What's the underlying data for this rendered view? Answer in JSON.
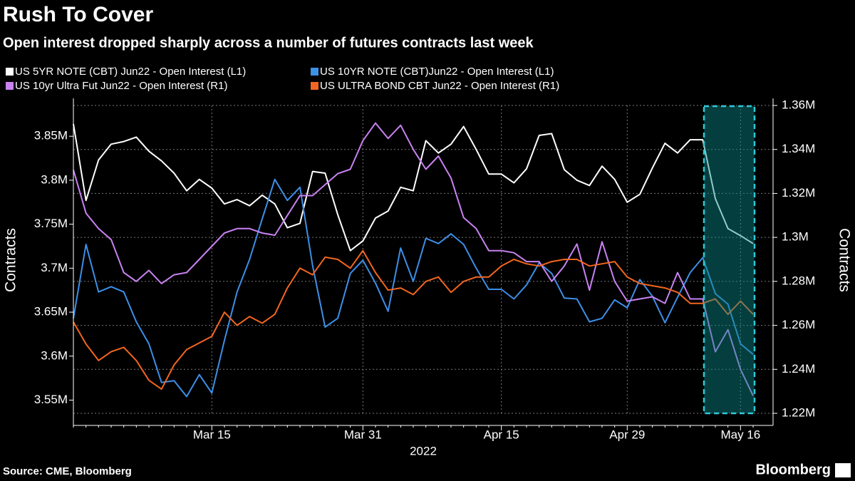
{
  "chart_data": {
    "type": "line",
    "title": "Rush To Cover",
    "subtitle": "Open interest dropped sharply across a number of futures contracts last week",
    "x_label": "2022",
    "y_label": "Contracts",
    "y2_label": "Contracts",
    "source": "Source: CME, Bloomberg",
    "brand": "Bloomberg",
    "grid": true,
    "categories": [
      null,
      null,
      null,
      null,
      null,
      null,
      null,
      null,
      null,
      null,
      null,
      "Mar 15",
      null,
      null,
      null,
      null,
      null,
      null,
      null,
      null,
      null,
      null,
      null,
      "Mar 31",
      null,
      null,
      null,
      null,
      null,
      null,
      null,
      null,
      null,
      null,
      "Apr 15",
      null,
      null,
      null,
      null,
      null,
      null,
      null,
      null,
      null,
      "Apr 29",
      null,
      null,
      null,
      null,
      null,
      null,
      null,
      null,
      "May 16",
      null
    ],
    "ylim": [
      3535000,
      3885000
    ],
    "yticks": [
      {
        "value": 3550000,
        "label": "3.55M"
      },
      {
        "value": 3600000,
        "label": "3.6M"
      },
      {
        "value": 3650000,
        "label": "3.65M"
      },
      {
        "value": 3700000,
        "label": "3.7M"
      },
      {
        "value": 3750000,
        "label": "3.75M"
      },
      {
        "value": 3800000,
        "label": "3.8M"
      },
      {
        "value": 3850000,
        "label": "3.85M"
      }
    ],
    "y2lim": [
      1220000,
      1360000
    ],
    "y2ticks": [
      {
        "value": 1220000,
        "label": "1.22M"
      },
      {
        "value": 1240000,
        "label": "1.24M"
      },
      {
        "value": 1260000,
        "label": "1.26M"
      },
      {
        "value": 1280000,
        "label": "1.28M"
      },
      {
        "value": 1300000,
        "label": "1.3M"
      },
      {
        "value": 1320000,
        "label": "1.32M"
      },
      {
        "value": 1340000,
        "label": "1.34M"
      },
      {
        "value": 1360000,
        "label": "1.36M"
      }
    ],
    "series": [
      {
        "name": "US 5YR NOTE (CBT) Jun22 - Open Interest (L1)",
        "color": "#ffffff",
        "axis": "y",
        "values": [
          3864000,
          3777000,
          3823000,
          3841000,
          3844000,
          3849000,
          3833000,
          3822000,
          3808000,
          3788000,
          3801000,
          3791000,
          3773000,
          3778000,
          3771000,
          3783000,
          3773000,
          3746000,
          3751000,
          3810000,
          3808000,
          3761000,
          3720000,
          3731000,
          3757000,
          3765000,
          3792000,
          3788000,
          3845000,
          3831000,
          3841000,
          3861000,
          3835000,
          3807000,
          3807000,
          3797000,
          3813000,
          3851000,
          3853000,
          3812000,
          3800000,
          3794000,
          3816000,
          3801000,
          3775000,
          3784000,
          3814000,
          3842000,
          3831000,
          3846000,
          3846000,
          3779000,
          3745000,
          3737000,
          3728000
        ]
      },
      {
        "name": "US 10YR NOTE (CBT)Jun22 - Open Interest (L1)",
        "color": "#3d8fe8",
        "axis": "y",
        "values": [
          3643000,
          3727000,
          3673000,
          3679000,
          3673000,
          3639000,
          3614000,
          3570000,
          3572000,
          3554000,
          3579000,
          3558000,
          3618000,
          3673000,
          3710000,
          3756000,
          3801000,
          3777000,
          3792000,
          3703000,
          3633000,
          3643000,
          3694000,
          3709000,
          3683000,
          3651000,
          3723000,
          3685000,
          3734000,
          3728000,
          3739000,
          3727000,
          3700000,
          3676000,
          3676000,
          3665000,
          3681000,
          3706000,
          3694000,
          3666000,
          3665000,
          3639000,
          3643000,
          3664000,
          3655000,
          3687000,
          3668000,
          3638000,
          3667000,
          3695000,
          3712000,
          3671000,
          3659000,
          3614000,
          3602000
        ]
      },
      {
        "name": "US 10yr Ultra Fut Jun22 - Open Interest (R1)",
        "color": "#c982f2",
        "axis": "y2",
        "values": [
          1330700,
          1311000,
          1304000,
          1299000,
          1284000,
          1280000,
          1285000,
          1279000,
          1283000,
          1284000,
          1290000,
          1296000,
          1302000,
          1304000,
          1304000,
          1302000,
          1301000,
          1310000,
          1319000,
          1319000,
          1324000,
          1329000,
          1331000,
          1344000,
          1352000,
          1345000,
          1351000,
          1340000,
          1331000,
          1337000,
          1327000,
          1309000,
          1304000,
          1294000,
          1294000,
          1293000,
          1289000,
          1289000,
          1280000,
          1287000,
          1297000,
          1276000,
          1298000,
          1280000,
          1271000,
          1272000,
          1273000,
          1270000,
          1284000,
          1272000,
          1272000,
          1248000,
          1258000,
          1240000,
          1228000
        ]
      },
      {
        "name": "US ULTRA BOND CBT Jun22 - Open Interest (R1)",
        "color": "#f2661f",
        "axis": "y2",
        "values": [
          1261500,
          1251500,
          1244000,
          1248000,
          1250000,
          1244000,
          1235000,
          1231000,
          1242000,
          1249000,
          1252000,
          1255000,
          1266000,
          1260000,
          1264000,
          1261000,
          1265000,
          1277000,
          1286000,
          1283000,
          1291000,
          1290000,
          1286000,
          1294000,
          1284000,
          1276000,
          1277000,
          1274000,
          1280000,
          1282000,
          1275000,
          1280000,
          1282000,
          1282000,
          1287000,
          1290000,
          1288000,
          1287000,
          1289000,
          1290000,
          1290000,
          1287000,
          1288000,
          1289000,
          1282000,
          1279000,
          1278000,
          1277000,
          1275000,
          1270000,
          1270000,
          1272000,
          1265000,
          1271000,
          1265000
        ]
      }
    ]
  }
}
